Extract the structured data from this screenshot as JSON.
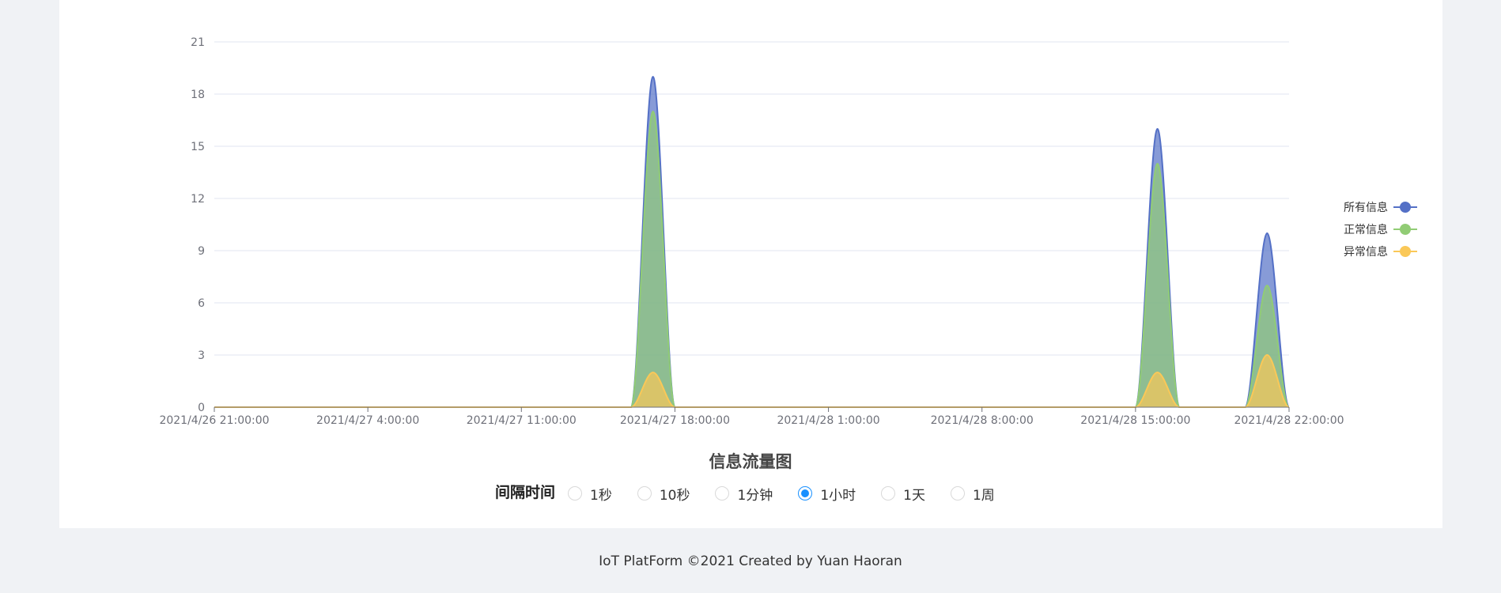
{
  "chart_data": {
    "type": "area",
    "smooth": true,
    "title": "信息流量图",
    "ylim": [
      0,
      21
    ],
    "y_ticks": [
      "0",
      "3",
      "6",
      "9",
      "12",
      "15",
      "18",
      "21"
    ],
    "x_labels": [
      "2021/4/26 21:00:00",
      "2021/4/27 4:00:00",
      "2021/4/27 11:00:00",
      "2021/4/27 18:00:00",
      "2021/4/28 1:00:00",
      "2021/4/28 8:00:00",
      "2021/4/28 15:00:00",
      "2021/4/28 22:00:00"
    ],
    "x_start": "2021/4/26 21:00:00",
    "x_end": "2021/4/28 22:00:00",
    "x_interval": "1 hour",
    "grid": true,
    "legend_position": "right",
    "series": [
      {
        "name": "所有信息",
        "color": "#5470c6",
        "values": [
          0,
          0,
          0,
          0,
          0,
          0,
          0,
          0,
          0,
          0,
          0,
          0,
          0,
          0,
          0,
          0,
          0,
          0,
          0,
          0,
          19,
          0,
          0,
          0,
          0,
          0,
          0,
          0,
          0,
          0,
          0,
          0,
          0,
          0,
          0,
          0,
          0,
          0,
          0,
          0,
          0,
          0,
          0,
          16,
          0,
          0,
          0,
          0,
          10,
          0
        ]
      },
      {
        "name": "正常信息",
        "color": "#91cc75",
        "values": [
          0,
          0,
          0,
          0,
          0,
          0,
          0,
          0,
          0,
          0,
          0,
          0,
          0,
          0,
          0,
          0,
          0,
          0,
          0,
          0,
          17,
          0,
          0,
          0,
          0,
          0,
          0,
          0,
          0,
          0,
          0,
          0,
          0,
          0,
          0,
          0,
          0,
          0,
          0,
          0,
          0,
          0,
          0,
          14,
          0,
          0,
          0,
          0,
          7,
          0
        ]
      },
      {
        "name": "异常信息",
        "color": "#fac858",
        "values": [
          0,
          0,
          0,
          0,
          0,
          0,
          0,
          0,
          0,
          0,
          0,
          0,
          0,
          0,
          0,
          0,
          0,
          0,
          0,
          0,
          2,
          0,
          0,
          0,
          0,
          0,
          0,
          0,
          0,
          0,
          0,
          0,
          0,
          0,
          0,
          0,
          0,
          0,
          0,
          0,
          0,
          0,
          0,
          2,
          0,
          0,
          0,
          0,
          3,
          0
        ]
      }
    ]
  },
  "controls": {
    "interval_label": "间隔时间",
    "options": [
      {
        "label": "1秒",
        "checked": false
      },
      {
        "label": "10秒",
        "checked": false
      },
      {
        "label": "1分钟",
        "checked": false
      },
      {
        "label": "1小时",
        "checked": true
      },
      {
        "label": "1天",
        "checked": false
      },
      {
        "label": "1周",
        "checked": false
      }
    ]
  },
  "footer": {
    "text": "IoT PlatForm ©2021 Created by Yuan Haoran"
  }
}
